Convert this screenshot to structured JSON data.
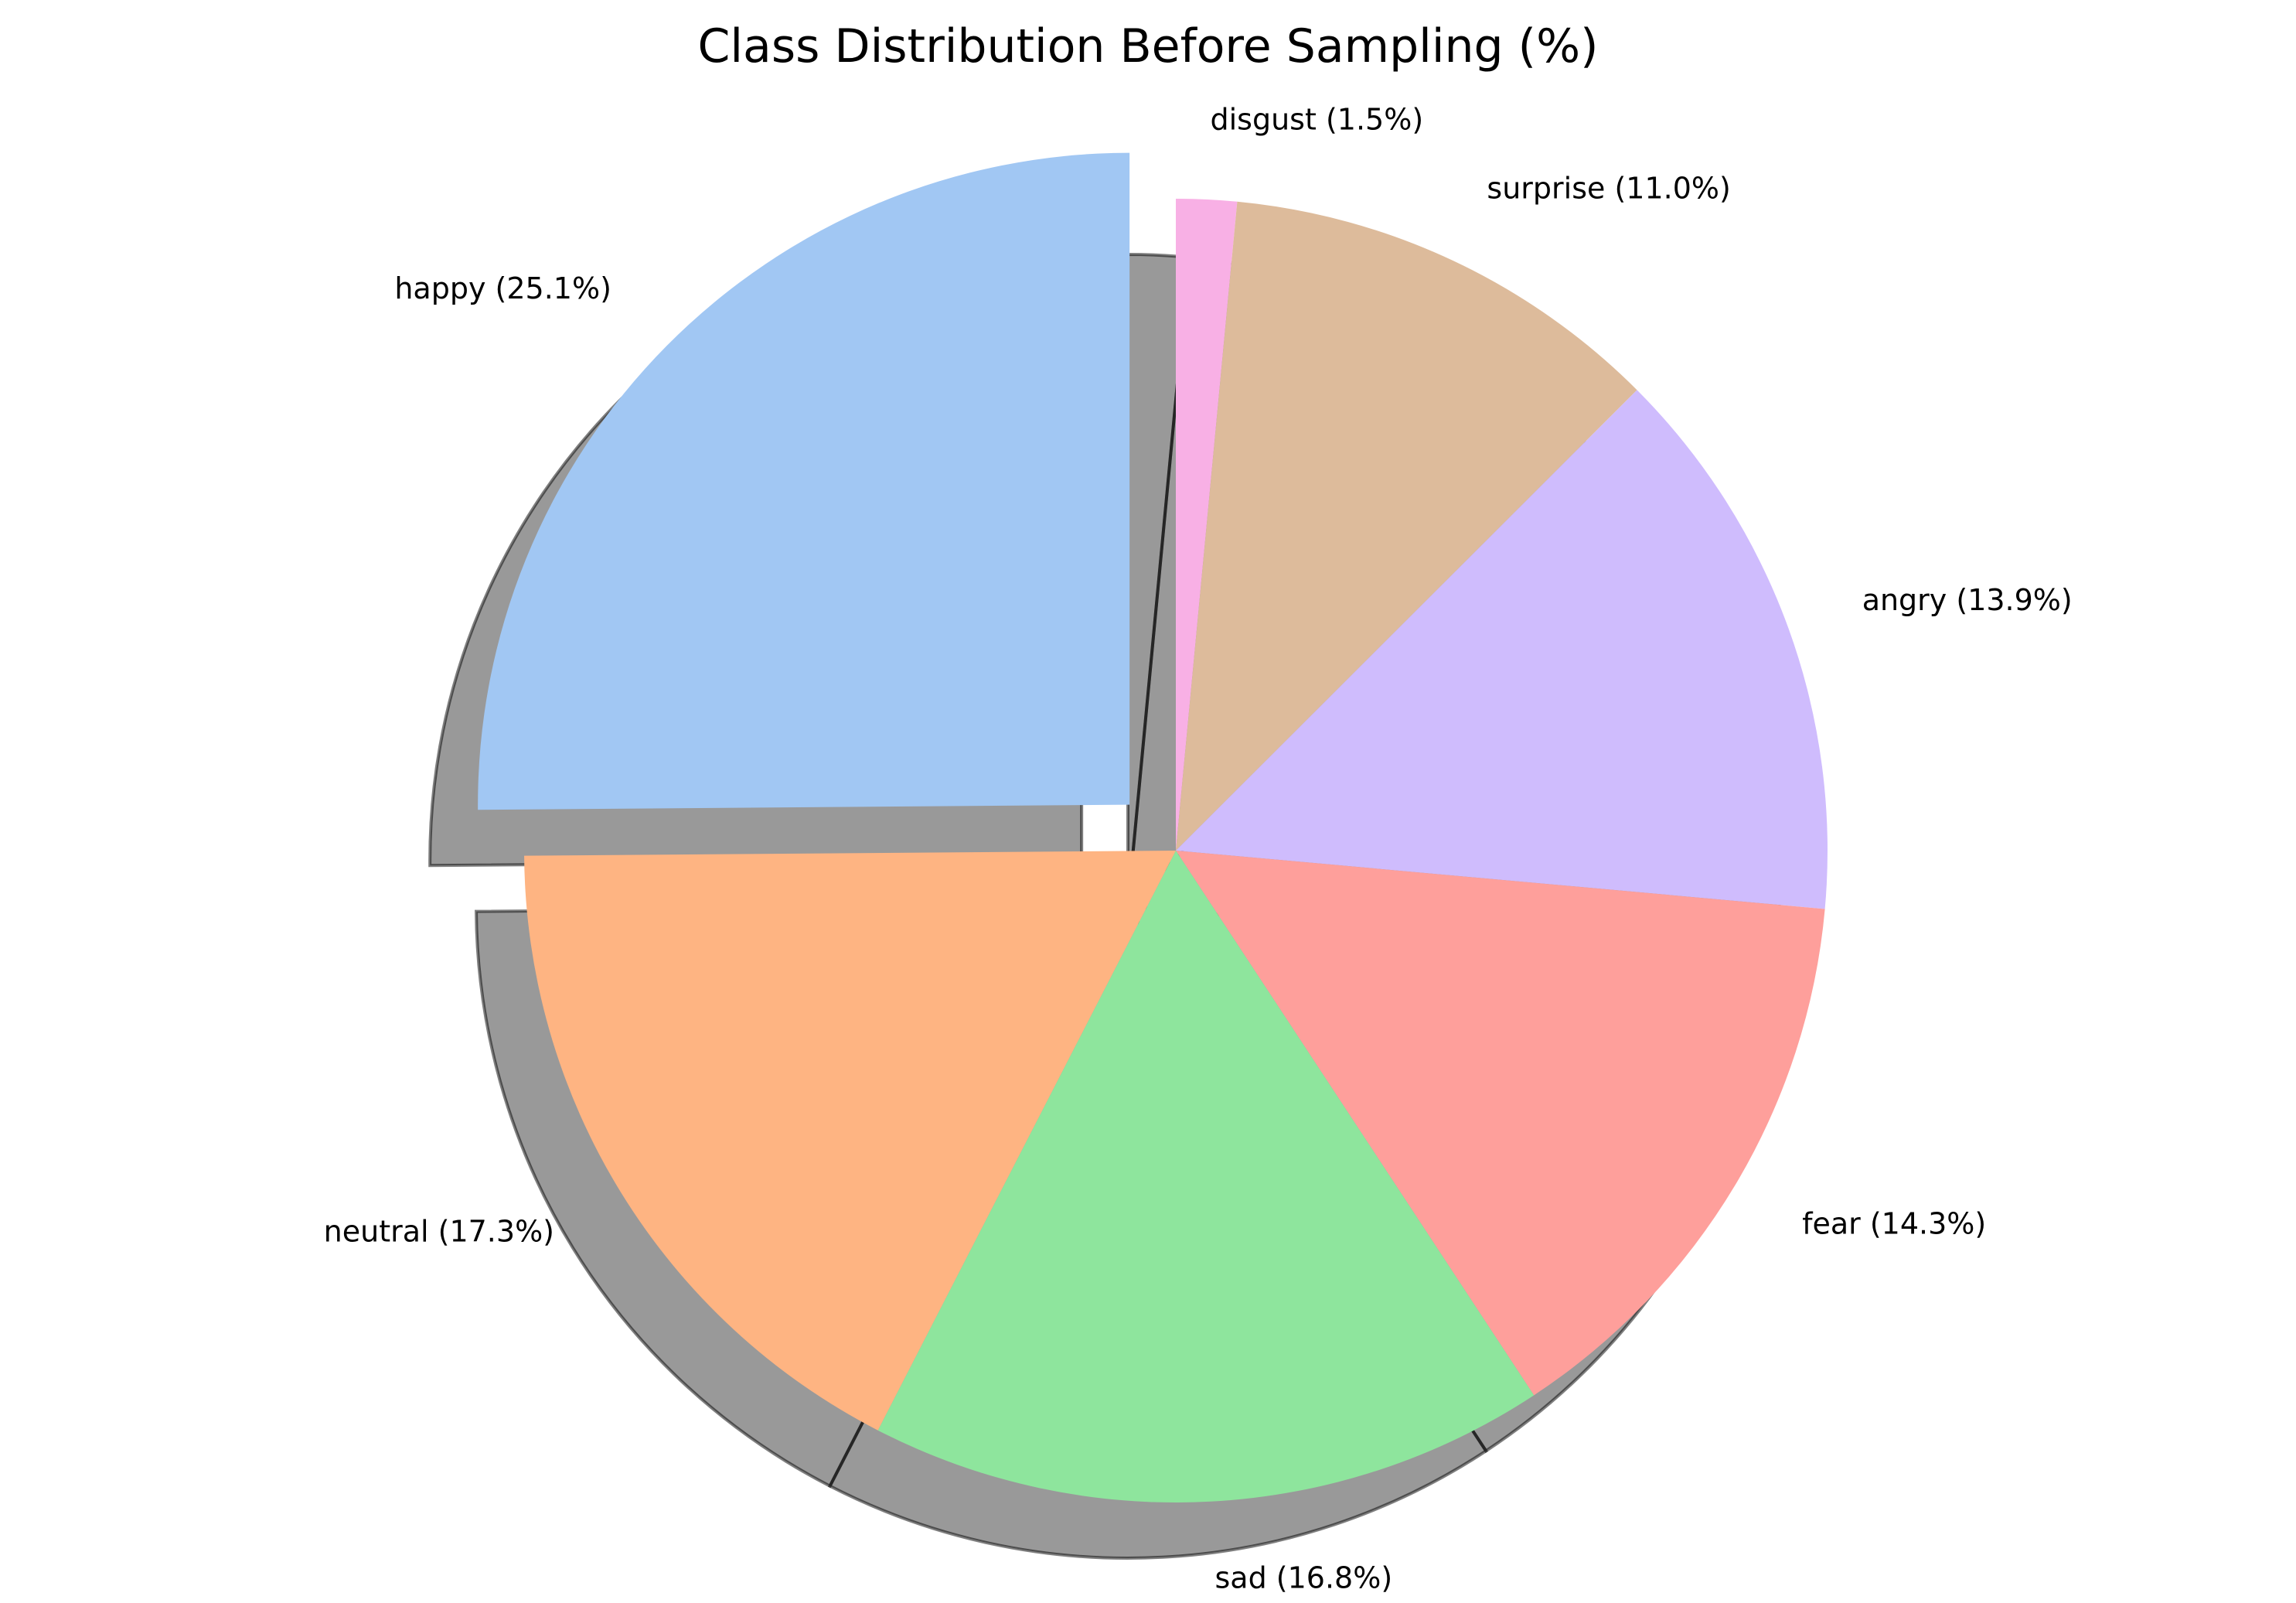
{
  "chart_data": {
    "type": "pie",
    "title": "Class Distribution Before Sampling (%)",
    "start_angle_deg": 90,
    "direction": "clockwise",
    "shadow": true,
    "exploded": [
      "happy"
    ],
    "slices": [
      {
        "name": "disgust",
        "value": 1.5,
        "label": "disgust (1.5%)",
        "color": "#f8b0e5"
      },
      {
        "name": "surprise",
        "value": 11.0,
        "label": "surprise (11.0%)",
        "color": "#ddbb9b"
      },
      {
        "name": "angry",
        "value": 13.9,
        "label": "angry (13.9%)",
        "color": "#cfbcfd"
      },
      {
        "name": "fear",
        "value": 14.3,
        "label": "fear (14.3%)",
        "color": "#fe9f9b"
      },
      {
        "name": "sad",
        "value": 16.8,
        "label": "sad (16.8%)",
        "color": "#8ee59d"
      },
      {
        "name": "neutral",
        "value": 17.3,
        "label": "neutral (17.3%)",
        "color": "#feb482"
      },
      {
        "name": "happy",
        "value": 25.1,
        "label": "happy (25.1%)",
        "color": "#a1c7f3"
      }
    ]
  }
}
